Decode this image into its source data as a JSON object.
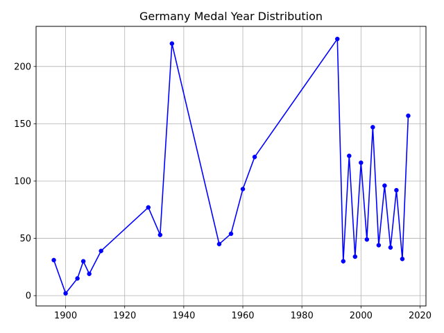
{
  "chart_data": {
    "type": "line",
    "title": "Germany Medal Year Distribution",
    "xlabel": "",
    "ylabel": "",
    "xlim": [
      1890,
      2022
    ],
    "ylim": [
      -9,
      235
    ],
    "x_ticks": [
      1900,
      1920,
      1940,
      1960,
      1980,
      2000,
      2020
    ],
    "y_ticks": [
      0,
      50,
      100,
      150,
      200
    ],
    "grid": true,
    "series": [
      {
        "color": "#0000ff",
        "marker": "circle",
        "x": [
          1896,
          1900,
          1904,
          1906,
          1908,
          1912,
          1928,
          1932,
          1936,
          1952,
          1956,
          1960,
          1964,
          1992,
          1994,
          1996,
          1998,
          2000,
          2002,
          2004,
          2006,
          2008,
          2010,
          2012,
          2014,
          2016
        ],
        "y": [
          31,
          2,
          15,
          30,
          19,
          39,
          77,
          53,
          220,
          45,
          54,
          93,
          121,
          224,
          30,
          122,
          34,
          116,
          49,
          147,
          44,
          96,
          42,
          92,
          32,
          157
        ]
      }
    ]
  }
}
